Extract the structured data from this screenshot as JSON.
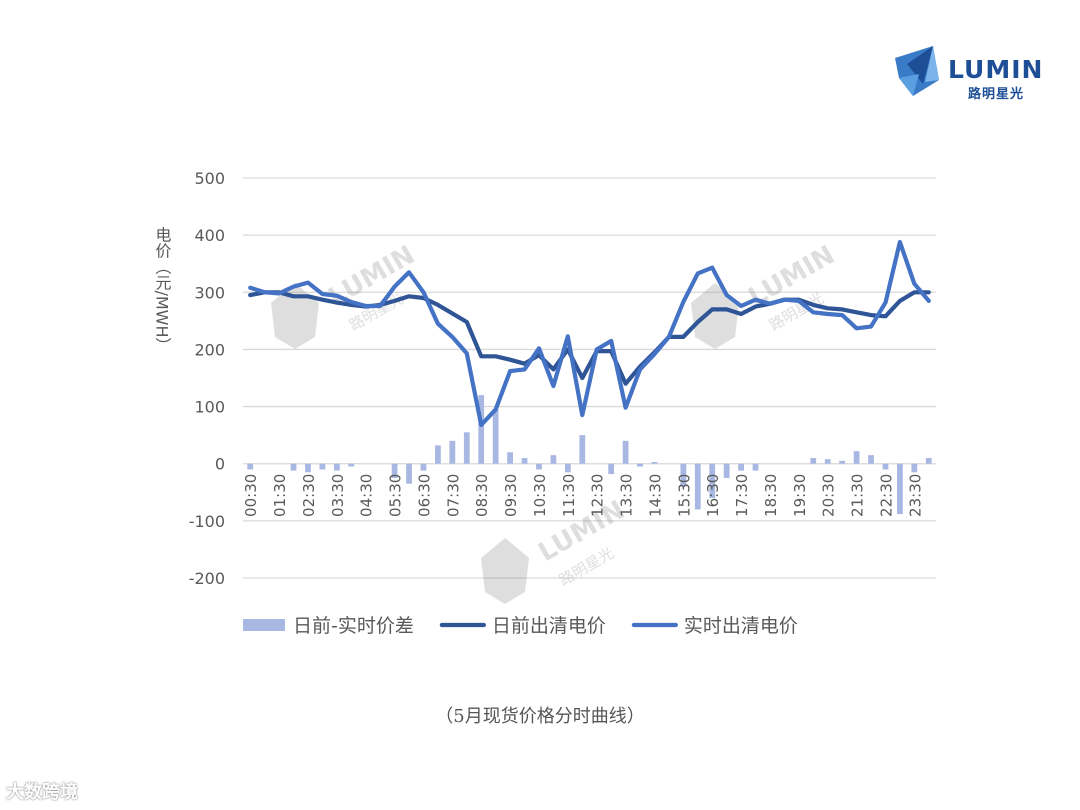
{
  "brand": {
    "name": "LUMIN",
    "subname": "路明星光",
    "color": "#1e4f96"
  },
  "caption": "（5月现货价格分时曲线）",
  "watermark": {
    "text": "LUMIN",
    "subtext": "路明星光",
    "bottom_text": "大数跨境"
  },
  "chart_data": {
    "type": "line",
    "ylabel": "电价（元/MWH）",
    "ylim": [
      -200,
      500
    ],
    "yticks": [
      -200,
      -100,
      0,
      100,
      200,
      300,
      400,
      500
    ],
    "grid": true,
    "legend_position": "bottom",
    "x": [
      "00:30",
      "01:00",
      "01:30",
      "02:00",
      "02:30",
      "03:00",
      "03:30",
      "04:00",
      "04:30",
      "05:00",
      "05:30",
      "06:00",
      "06:30",
      "07:00",
      "07:30",
      "08:00",
      "08:30",
      "09:00",
      "09:30",
      "10:00",
      "10:30",
      "11:00",
      "11:30",
      "12:00",
      "12:30",
      "13:00",
      "13:30",
      "14:00",
      "14:30",
      "15:00",
      "15:30",
      "16:00",
      "16:30",
      "17:00",
      "17:30",
      "18:00",
      "18:30",
      "19:00",
      "19:30",
      "20:00",
      "20:30",
      "21:00",
      "21:30",
      "22:00",
      "22:30",
      "23:00",
      "23:30",
      "24:00"
    ],
    "xtick_labels": [
      "00:30",
      "01:30",
      "02:30",
      "03:30",
      "04:30",
      "05:30",
      "06:30",
      "07:30",
      "08:30",
      "09:30",
      "10:30",
      "11:30",
      "12:30",
      "13:30",
      "14:30",
      "15:30",
      "16:30",
      "17:30",
      "18:30",
      "19:30",
      "20:30",
      "21:30",
      "22:30",
      "23:30"
    ],
    "series": [
      {
        "name": "日前-实时价差",
        "kind": "bar",
        "color": "#a9b8e2",
        "values": [
          -10,
          0,
          0,
          -12,
          -15,
          -10,
          -12,
          -5,
          0,
          0,
          -25,
          -35,
          -12,
          32,
          40,
          55,
          120,
          95,
          20,
          10,
          -10,
          15,
          -15,
          50,
          0,
          -18,
          40,
          -5,
          3,
          0,
          -40,
          -80,
          -60,
          -25,
          -12,
          -12,
          0,
          0,
          0,
          10,
          8,
          5,
          22,
          15,
          -10,
          -88,
          -15,
          10
        ]
      },
      {
        "name": "日前出清电价",
        "kind": "line",
        "color": "#2f5597",
        "values": [
          295,
          300,
          300,
          293,
          293,
          287,
          282,
          278,
          275,
          278,
          285,
          293,
          290,
          278,
          263,
          248,
          188,
          188,
          182,
          175,
          190,
          165,
          200,
          150,
          197,
          197,
          140,
          170,
          195,
          222,
          222,
          248,
          270,
          270,
          262,
          275,
          280,
          287,
          287,
          278,
          272,
          270,
          265,
          260,
          258,
          285,
          300,
          300
        ]
      },
      {
        "name": "实时出清电价",
        "kind": "line",
        "color": "#4472c4",
        "values": [
          308,
          300,
          298,
          310,
          317,
          297,
          294,
          283,
          276,
          276,
          310,
          335,
          300,
          245,
          222,
          193,
          68,
          95,
          162,
          165,
          202,
          136,
          223,
          85,
          200,
          215,
          98,
          165,
          192,
          222,
          283,
          333,
          343,
          295,
          276,
          287,
          280,
          287,
          285,
          265,
          262,
          260,
          237,
          240,
          282,
          388,
          315,
          285
        ]
      }
    ]
  }
}
